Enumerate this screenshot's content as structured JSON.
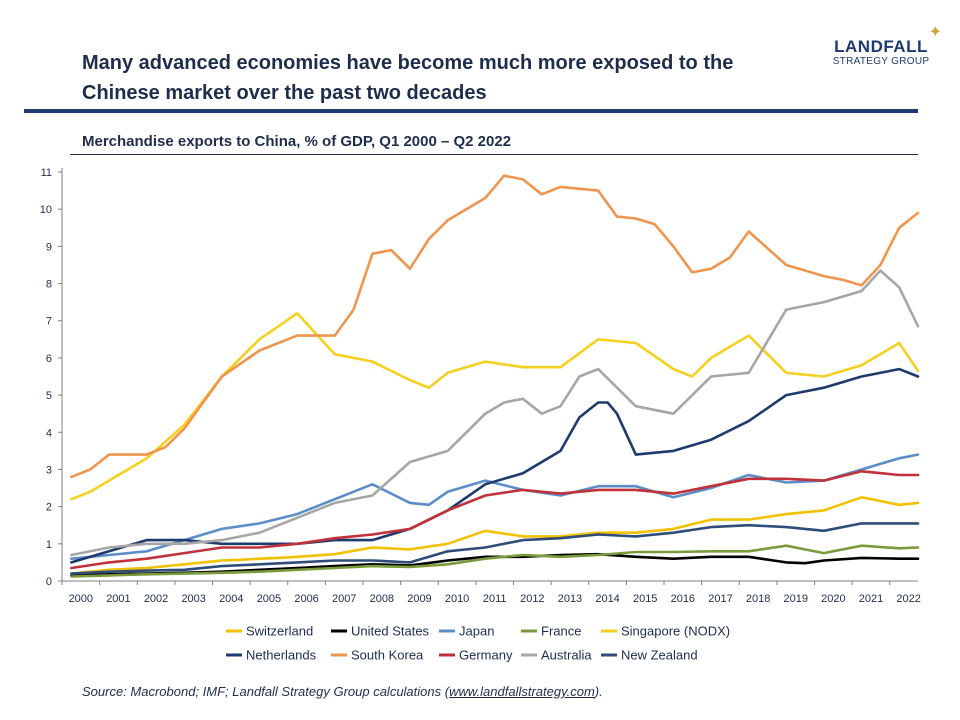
{
  "header": {
    "headline": "Many advanced economies have become much more exposed to the Chinese market over the past two decades",
    "logo_name": "LANDFALL",
    "logo_sub": "STRATEGY GROUP"
  },
  "footer": {
    "source_prefix": "Source: Macrobond; IMF; Landfall Strategy Group calculations (",
    "source_link": "www.landfallstrategy.com",
    "source_suffix": ")."
  },
  "chart_data": {
    "type": "line",
    "title": "Merchandise exports to China, % of GDP, Q1 2000 – Q2 2022",
    "xlabel": "",
    "ylabel": "",
    "xlim": [
      1999.75,
      2022.5
    ],
    "ylim": [
      0,
      11
    ],
    "y_ticks": [
      0,
      1,
      2,
      3,
      4,
      5,
      6,
      7,
      8,
      9,
      10,
      11
    ],
    "x_ticks": [
      "2000",
      "2001",
      "2002",
      "2003",
      "2004",
      "2005",
      "2006",
      "2007",
      "2008",
      "2009",
      "2010",
      "2011",
      "2012",
      "2013",
      "2014",
      "2015",
      "2016",
      "2017",
      "2018",
      "2019",
      "2020",
      "2021",
      "2022"
    ],
    "grid": false,
    "legend_position": "bottom",
    "series": [
      {
        "name": "Switzerland",
        "color": "#f2c200",
        "x": [
          2000,
          2000.5,
          2001,
          2002,
          2003,
          2004,
          2004.5,
          2005,
          2005.5,
          2006,
          2007,
          2008,
          2009,
          2010,
          2011,
          2012,
          2013,
          2014,
          2015,
          2016,
          2017,
          2018,
          2019,
          2020,
          2021,
          2022,
          2022.5
        ],
        "values": [
          0.2,
          0.25,
          0.3,
          0.35,
          0.45,
          0.55,
          0.57,
          0.6,
          0.62,
          0.65,
          0.72,
          0.9,
          0.85,
          1.0,
          1.35,
          1.2,
          1.2,
          1.3,
          1.3,
          1.4,
          1.65,
          1.65,
          1.8,
          1.9,
          2.25,
          2.05,
          2.1
        ]
      },
      {
        "name": "United States",
        "color": "#000000",
        "x": [
          2000,
          2001,
          2002,
          2003,
          2004,
          2005,
          2006,
          2007,
          2008,
          2009,
          2010,
          2011,
          2012,
          2013,
          2014,
          2015,
          2016,
          2017,
          2018,
          2019,
          2019.5,
          2020,
          2021,
          2022,
          2022.5
        ],
        "values": [
          0.15,
          0.18,
          0.2,
          0.22,
          0.25,
          0.3,
          0.35,
          0.4,
          0.45,
          0.42,
          0.55,
          0.65,
          0.65,
          0.7,
          0.72,
          0.65,
          0.6,
          0.65,
          0.65,
          0.5,
          0.48,
          0.55,
          0.62,
          0.6,
          0.6
        ]
      },
      {
        "name": "Japan",
        "color": "#5b8ec9",
        "x": [
          2000,
          2001,
          2002,
          2003,
          2004,
          2005,
          2006,
          2007,
          2008,
          2009,
          2009.5,
          2010,
          2011,
          2012,
          2013,
          2014,
          2015,
          2016,
          2017,
          2018,
          2019,
          2020,
          2021,
          2022,
          2022.5
        ],
        "values": [
          0.6,
          0.7,
          0.8,
          1.1,
          1.4,
          1.55,
          1.8,
          2.2,
          2.6,
          2.1,
          2.05,
          2.4,
          2.7,
          2.45,
          2.3,
          2.55,
          2.55,
          2.25,
          2.5,
          2.85,
          2.65,
          2.7,
          3.0,
          3.3,
          3.4
        ]
      },
      {
        "name": "France",
        "color": "#7a9a3c",
        "x": [
          2000,
          2001,
          2002,
          2003,
          2004,
          2005,
          2006,
          2007,
          2008,
          2009,
          2010,
          2011,
          2012,
          2013,
          2014,
          2015,
          2016,
          2017,
          2018,
          2019,
          2020,
          2021,
          2022,
          2022.5
        ],
        "values": [
          0.12,
          0.15,
          0.18,
          0.2,
          0.22,
          0.25,
          0.3,
          0.35,
          0.4,
          0.38,
          0.45,
          0.6,
          0.7,
          0.65,
          0.7,
          0.78,
          0.78,
          0.8,
          0.8,
          0.95,
          0.75,
          0.95,
          0.88,
          0.9
        ]
      },
      {
        "name": "Singapore (NODX)",
        "color": "#f5d020",
        "x": [
          2000,
          2000.5,
          2001,
          2002,
          2003,
          2004,
          2005,
          2006,
          2007,
          2008,
          2009,
          2009.5,
          2010,
          2011,
          2012,
          2013,
          2014,
          2015,
          2016,
          2016.5,
          2017,
          2018,
          2019,
          2020,
          2021,
          2022,
          2022.5
        ],
        "values": [
          2.2,
          2.4,
          2.7,
          3.3,
          4.2,
          5.5,
          6.5,
          7.2,
          6.1,
          5.9,
          5.4,
          5.2,
          5.6,
          5.9,
          5.75,
          5.75,
          6.5,
          6.4,
          5.7,
          5.5,
          6.0,
          6.6,
          5.6,
          5.5,
          5.8,
          6.4,
          5.65
        ]
      },
      {
        "name": "Netherlands",
        "color": "#1f3a6e",
        "x": [
          2000,
          2001,
          2002,
          2003,
          2004,
          2005,
          2006,
          2007,
          2008,
          2009,
          2010,
          2011,
          2012,
          2013,
          2013.5,
          2014,
          2014.25,
          2014.5,
          2015,
          2016,
          2017,
          2018,
          2019,
          2020,
          2021,
          2022,
          2022.5
        ],
        "values": [
          0.5,
          0.8,
          1.1,
          1.1,
          1.0,
          1.0,
          1.0,
          1.1,
          1.1,
          1.4,
          1.9,
          2.6,
          2.9,
          3.5,
          4.4,
          4.8,
          4.8,
          4.5,
          3.4,
          3.5,
          3.8,
          4.3,
          5.0,
          5.2,
          5.5,
          5.7,
          5.5
        ]
      },
      {
        "name": "South Korea",
        "color": "#f0954e",
        "x": [
          2000,
          2000.5,
          2001,
          2002,
          2002.5,
          2003,
          2004,
          2005,
          2006,
          2007,
          2007.5,
          2008,
          2008.5,
          2009,
          2009.5,
          2010,
          2011,
          2011.5,
          2012,
          2012.5,
          2013,
          2014,
          2014.5,
          2015,
          2015.5,
          2016,
          2016.5,
          2017,
          2017.5,
          2018,
          2019,
          2020,
          2020.5,
          2021,
          2021.5,
          2022,
          2022.5
        ],
        "values": [
          2.8,
          3.0,
          3.4,
          3.4,
          3.6,
          4.1,
          5.5,
          6.2,
          6.6,
          6.6,
          7.3,
          8.8,
          8.9,
          8.4,
          9.2,
          9.7,
          10.3,
          10.9,
          10.8,
          10.4,
          10.6,
          10.5,
          9.8,
          9.75,
          9.6,
          9.0,
          8.3,
          8.4,
          8.7,
          9.4,
          8.5,
          8.2,
          8.1,
          7.95,
          8.5,
          9.5,
          9.9
        ]
      },
      {
        "name": "Germany",
        "color": "#c0313a",
        "x": [
          2000,
          2001,
          2002,
          2003,
          2004,
          2005,
          2006,
          2007,
          2008,
          2009,
          2010,
          2011,
          2012,
          2013,
          2014,
          2015,
          2016,
          2017,
          2018,
          2019,
          2020,
          2021,
          2022,
          2022.5
        ],
        "values": [
          0.35,
          0.5,
          0.6,
          0.75,
          0.9,
          0.9,
          1.0,
          1.15,
          1.25,
          1.4,
          1.9,
          2.3,
          2.45,
          2.35,
          2.45,
          2.45,
          2.35,
          2.55,
          2.75,
          2.75,
          2.7,
          2.95,
          2.85,
          2.85
        ]
      },
      {
        "name": "Australia",
        "color": "#a6a6a6",
        "x": [
          2000,
          2001,
          2002,
          2003,
          2004,
          2005,
          2006,
          2007,
          2008,
          2009,
          2010,
          2011,
          2011.5,
          2012,
          2012.5,
          2013,
          2013.5,
          2014,
          2015,
          2016,
          2017,
          2018,
          2019,
          2020,
          2021,
          2021.5,
          2022,
          2022.5
        ],
        "values": [
          0.7,
          0.9,
          1.0,
          1.0,
          1.1,
          1.3,
          1.7,
          2.1,
          2.3,
          3.2,
          3.5,
          4.5,
          4.8,
          4.9,
          4.5,
          4.7,
          5.5,
          5.7,
          4.7,
          4.5,
          5.5,
          5.6,
          7.3,
          7.5,
          7.8,
          8.35,
          7.9,
          6.85
        ]
      },
      {
        "name": "New Zealand",
        "color": "#2e4d7a",
        "x": [
          2000,
          2001,
          2002,
          2003,
          2004,
          2005,
          2006,
          2007,
          2008,
          2009,
          2010,
          2011,
          2012,
          2013,
          2014,
          2015,
          2016,
          2017,
          2018,
          2019,
          2020,
          2021,
          2022,
          2022.5
        ],
        "values": [
          0.2,
          0.25,
          0.28,
          0.3,
          0.4,
          0.45,
          0.5,
          0.55,
          0.55,
          0.5,
          0.8,
          0.9,
          1.1,
          1.15,
          1.25,
          1.2,
          1.3,
          1.45,
          1.5,
          1.45,
          1.35,
          1.55,
          1.55,
          1.55
        ]
      }
    ]
  }
}
